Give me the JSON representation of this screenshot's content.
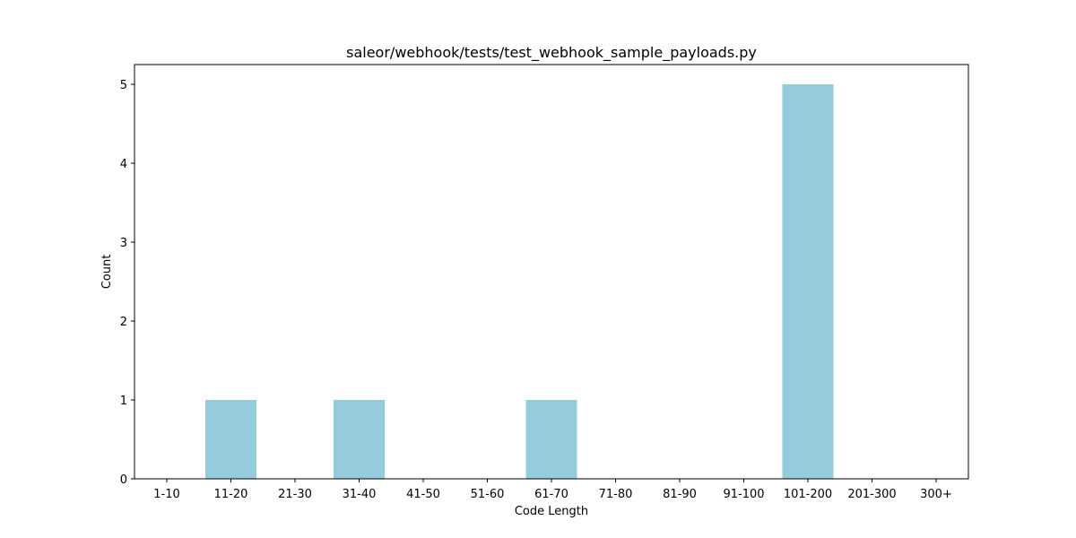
{
  "chart_data": {
    "type": "bar",
    "title": "saleor/webhook/tests/test_webhook_sample_payloads.py",
    "xlabel": "Code Length",
    "ylabel": "Count",
    "categories": [
      "1-10",
      "11-20",
      "21-30",
      "31-40",
      "41-50",
      "51-60",
      "61-70",
      "71-80",
      "81-90",
      "91-100",
      "101-200",
      "201-300",
      "300+"
    ],
    "values": [
      0,
      1,
      0,
      1,
      0,
      0,
      1,
      0,
      0,
      0,
      5,
      0,
      0
    ],
    "ylim": [
      0,
      5.25
    ],
    "yticks": [
      0,
      1,
      2,
      3,
      4,
      5
    ],
    "bar_color": "#96cadd",
    "grid": false,
    "legend": false
  }
}
